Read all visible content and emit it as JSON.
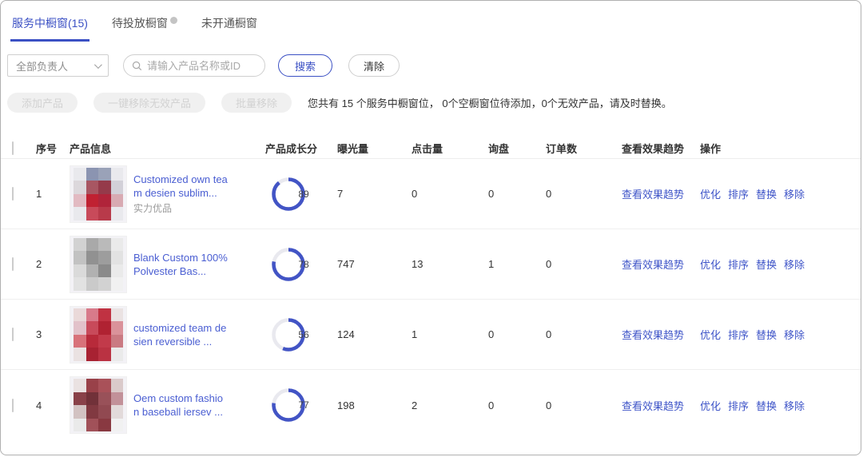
{
  "tabs": [
    {
      "label": "服务中橱窗(15)",
      "active": true,
      "has_badge": false
    },
    {
      "label": "待投放橱窗",
      "active": false,
      "has_badge": true
    },
    {
      "label": "未开通橱窗",
      "active": false,
      "has_badge": false
    }
  ],
  "filters": {
    "owner_select_value": "全部负责人",
    "search_placeholder": "请输入产品名称或ID",
    "search_value": "",
    "search_button": "搜索",
    "clear_button": "清除"
  },
  "actions_bar": {
    "buttons": [
      "添加产品",
      "一键移除无效产品",
      "批量移除"
    ],
    "summary": "您共有 15 个服务中橱窗位， 0个空橱窗位待添加，0个无效产品，请及时替换。"
  },
  "table": {
    "headers": [
      "序号",
      "产品信息",
      "产品成长分",
      "曝光量",
      "点击量",
      "询盘",
      "订单数",
      "查看效果趋势",
      "操作"
    ],
    "trend_link_label": "查看效果趋势",
    "row_actions": [
      "优化",
      "排序",
      "替换",
      "移除"
    ],
    "rows": [
      {
        "index": "1",
        "title": "Customized own team desien sublim...",
        "tag": "实力优品",
        "score": 89,
        "exposure": "7",
        "clicks": "0",
        "inquiries": "0",
        "orders": "0",
        "thumb_colors": [
          "#e9e9ed",
          "#8b94b1",
          "#9aa2b8",
          "#e9e9ed",
          "#dcd8dc",
          "#a85662",
          "#953a4a",
          "#d2d0d8",
          "#e2bac2",
          "#c02132",
          "#b0243a",
          "#d8aab2",
          "#e9e9ed",
          "#c84a5a",
          "#b83a4a",
          "#e9e9ed"
        ]
      },
      {
        "index": "2",
        "title": "Blank Custom 100% Polvester Bas...",
        "tag": "",
        "score": 78,
        "exposure": "747",
        "clicks": "13",
        "inquiries": "1",
        "orders": "0",
        "thumb_colors": [
          "#d2d2d2",
          "#a9a9a9",
          "#bababa",
          "#eaeaea",
          "#c2c2c2",
          "#919191",
          "#9d9d9d",
          "#e2e2e2",
          "#dadada",
          "#b1b1b1",
          "#8a8a8a",
          "#eaeaea",
          "#e2e2e2",
          "#cacaca",
          "#d2d2d2",
          "#f1f1f1"
        ]
      },
      {
        "index": "3",
        "title": "customized team desien reversible ...",
        "tag": "",
        "score": 56,
        "exposure": "124",
        "clicks": "1",
        "inquiries": "0",
        "orders": "0",
        "thumb_colors": [
          "#ead9d9",
          "#d87a8a",
          "#c03242",
          "#eae2e2",
          "#e2c2ca",
          "#c84a5a",
          "#b02232",
          "#da929a",
          "#d8727a",
          "#b82a3a",
          "#c23a4a",
          "#ca7a82",
          "#eae2e2",
          "#a82232",
          "#ba3242",
          "#eaeaea"
        ]
      },
      {
        "index": "4",
        "title": "Oem custom fashion baseball iersev ...",
        "tag": "",
        "score": 77,
        "exposure": "198",
        "clicks": "2",
        "inquiries": "0",
        "orders": "0",
        "thumb_colors": [
          "#eae2e2",
          "#994149",
          "#a95159",
          "#dacaca",
          "#894149",
          "#713139",
          "#995159",
          "#c29199",
          "#d2c2c2",
          "#813941",
          "#914951",
          "#e2dada",
          "#eaeaea",
          "#a15159",
          "#893941",
          "#f1f1f1"
        ]
      }
    ]
  },
  "colors": {
    "accent": "#3b50c4",
    "link": "#3f55c8",
    "ring": "#4254c5",
    "ring_track": "#e9e9ef",
    "disabled_bg": "#f0f0f0",
    "disabled_text": "#d2d2d2"
  }
}
